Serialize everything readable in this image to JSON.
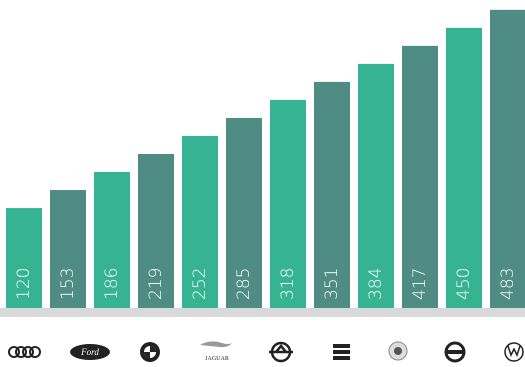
{
  "chart_data": {
    "type": "bar",
    "values": [
      120,
      153,
      186,
      219,
      252,
      285,
      318,
      351,
      384,
      417,
      450,
      483
    ],
    "colors": [
      "#36b393",
      "#4f8c84"
    ],
    "ylim": [
      -63,
      501
    ]
  },
  "logos": [
    "Ford",
    "JAGUAR"
  ]
}
